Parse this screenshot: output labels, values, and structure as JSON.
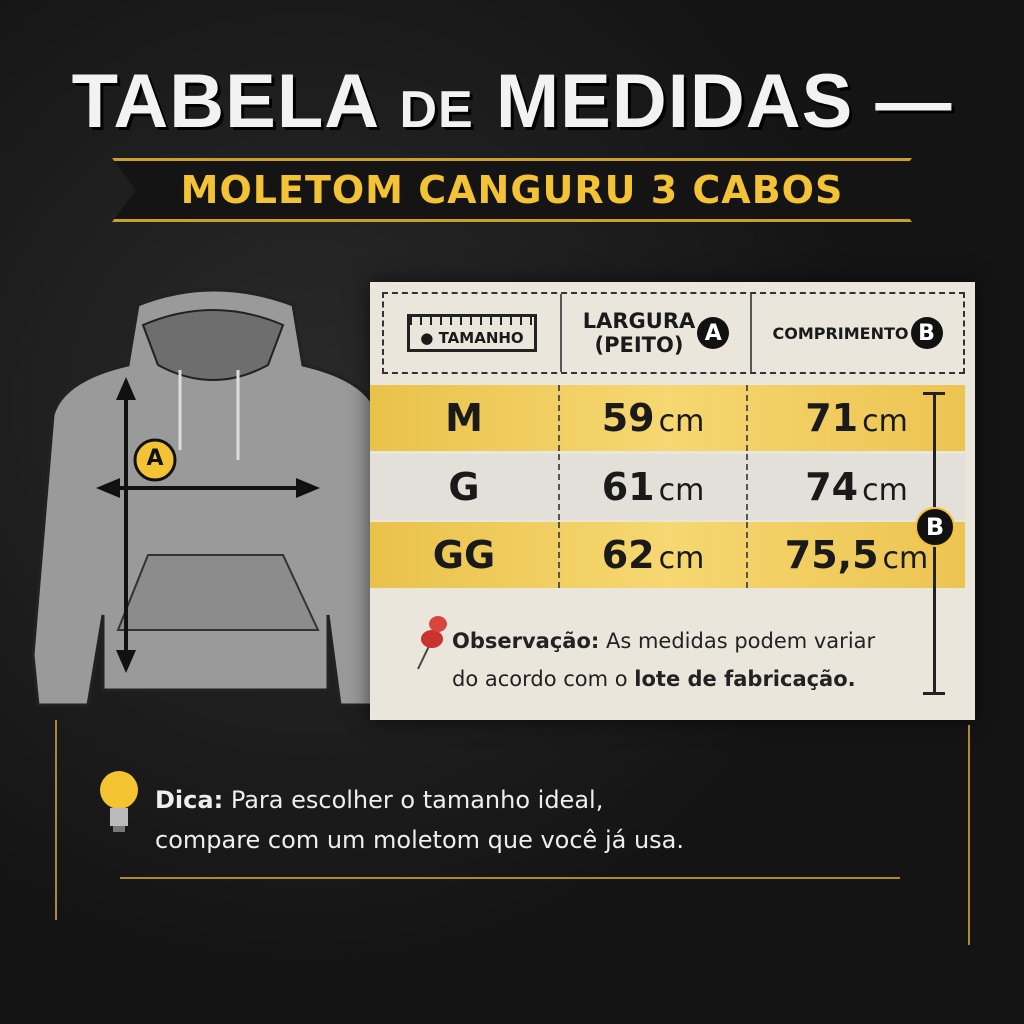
{
  "title": {
    "part1": "TABELA",
    "part2": "DE",
    "part3": "MEDIDAS"
  },
  "subtitle": "MOLETOM CANGURU 3 CABOS",
  "table": {
    "headers": {
      "size": "TAMANHO",
      "width": "LARGURA",
      "width_sub": "(PEITO)",
      "width_marker": "A",
      "length": "COMPRIMENTO",
      "length_marker": "B"
    },
    "unit": "cm",
    "rows": [
      {
        "size": "M",
        "width": "59",
        "length": "71"
      },
      {
        "size": "G",
        "width": "61",
        "length": "74"
      },
      {
        "size": "GG",
        "width": "62",
        "length": "75,5"
      }
    ],
    "length_marker": "B"
  },
  "garment_marker": "A",
  "note": {
    "label": "Observação:",
    "text1": "As medidas podem variar",
    "text2": "do acordo com o",
    "bold": "lote de fabricação."
  },
  "tip": {
    "label": "Dica:",
    "text1": "Para escolher o tamanho ideal,",
    "text2": "compare com um moletom que você já usa."
  },
  "colors": {
    "accent": "#f3c235",
    "row_highlight": "#f0cb5a",
    "garment": "#9a9a9a"
  },
  "icons": {
    "note": "pushpin-icon",
    "tip": "lightbulb-icon"
  }
}
